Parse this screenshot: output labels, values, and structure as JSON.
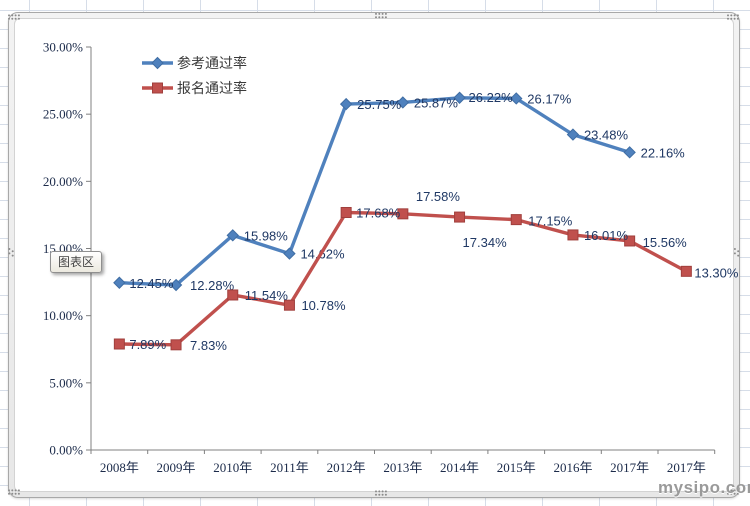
{
  "tooltip": {
    "label": "图表区"
  },
  "watermark": {
    "text": "mysipo.com"
  },
  "colors": {
    "series1": "#4f81bd",
    "series1_edge": "#3f6da3",
    "series2": "#c0504d",
    "series2_edge": "#a03f3c",
    "axis_line": "#808080",
    "axis_text": "#1c2b4a",
    "data_label_text": "#1f3864",
    "legend_text": "#3a3a3a",
    "grid_line": "#d6dde8",
    "handle_dot": "#8a8a8a"
  },
  "chart_data": {
    "type": "line",
    "title": "",
    "categories": [
      "2008年",
      "2009年",
      "2010年",
      "2011年",
      "2012年",
      "2013年",
      "2014年",
      "2015年",
      "2016年",
      "2017年",
      "2017年"
    ],
    "series": [
      {
        "name": "参考通过率",
        "color": "#4f81bd",
        "marker": "diamond",
        "values": [
          12.45,
          12.28,
          15.98,
          14.62,
          25.75,
          25.87,
          26.22,
          26.17,
          23.48,
          22.16
        ],
        "labels": [
          "12.45%",
          "12.28%",
          "15.98%",
          "14.62%",
          "25.75%",
          "25.87%",
          "26.22%",
          "26.17%",
          "23.48%",
          "22.16%"
        ],
        "label_offsets": [
          [
            10,
            5
          ],
          [
            14,
            5
          ],
          [
            11,
            5
          ],
          [
            11,
            5
          ],
          [
            11,
            5
          ],
          [
            11,
            5
          ],
          [
            9,
            4
          ],
          [
            11,
            5
          ],
          [
            11,
            5
          ],
          [
            11,
            5
          ]
        ]
      },
      {
        "name": "报名通过率",
        "color": "#c0504d",
        "marker": "square",
        "values": [
          7.89,
          7.83,
          11.54,
          10.78,
          17.68,
          17.58,
          17.34,
          17.15,
          16.01,
          15.56,
          13.3
        ],
        "labels": [
          "7.89%",
          "7.83%",
          "11.54%",
          "10.78%",
          "17.68%",
          "17.58%",
          "17.34%",
          "17.15%",
          "16.01%",
          "15.56%",
          "13.30%"
        ],
        "label_offsets": [
          [
            10,
            5
          ],
          [
            14,
            5
          ],
          [
            12,
            5
          ],
          [
            12,
            5
          ],
          [
            10,
            5
          ],
          [
            13,
            -13
          ],
          [
            3,
            30
          ],
          [
            12,
            6
          ],
          [
            11,
            5
          ],
          [
            13,
            6
          ],
          [
            8,
            6
          ]
        ]
      }
    ],
    "ylim": [
      0,
      30
    ],
    "ytick_step": 5,
    "ytick_labels": [
      "0.00%",
      "5.00%",
      "10.00%",
      "15.00%",
      "20.00%",
      "25.00%",
      "30.00%"
    ],
    "legend_position": "top-left-inside",
    "grid": false
  }
}
